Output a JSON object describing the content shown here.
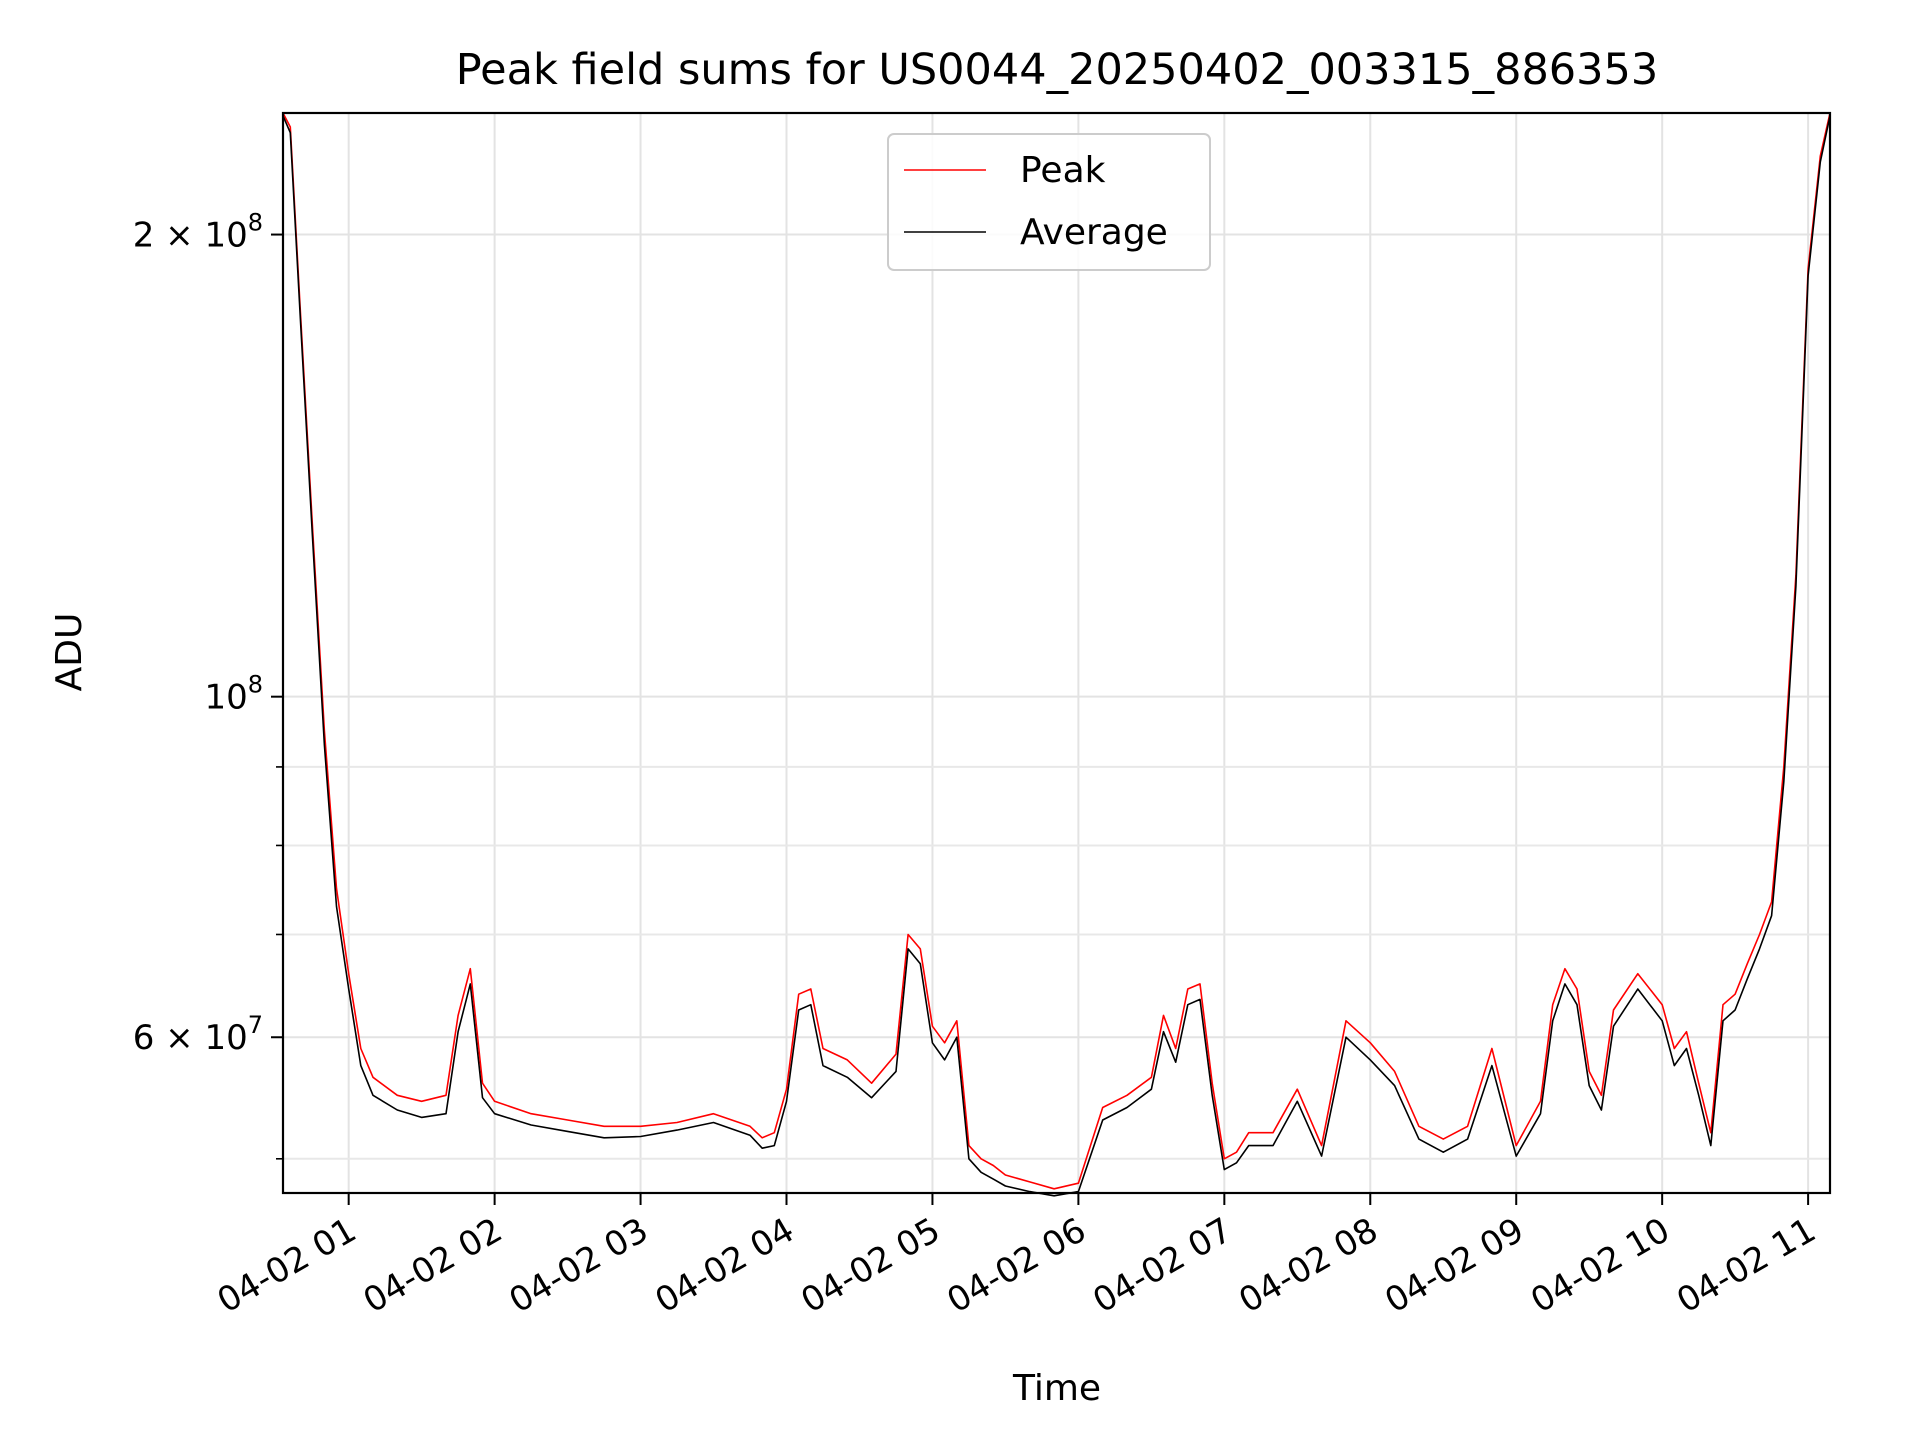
{
  "chart_data": {
    "type": "line",
    "title": "Peak field sums for US0044_20250402_003315_886353",
    "xlabel": "Time",
    "ylabel": "ADU",
    "yscale": "log",
    "xlim": [
      "2025-04-02 00:33",
      "2025-04-02 11:09"
    ],
    "ylim": [
      47500000,
      240000000
    ],
    "grid": true,
    "legend_position": "top-center",
    "x_ticks": [
      {
        "t": "2025-04-02 01:00",
        "label": "04-02 01"
      },
      {
        "t": "2025-04-02 02:00",
        "label": "04-02 02"
      },
      {
        "t": "2025-04-02 03:00",
        "label": "04-02 03"
      },
      {
        "t": "2025-04-02 04:00",
        "label": "04-02 04"
      },
      {
        "t": "2025-04-02 05:00",
        "label": "04-02 05"
      },
      {
        "t": "2025-04-02 06:00",
        "label": "04-02 06"
      },
      {
        "t": "2025-04-02 07:00",
        "label": "04-02 07"
      },
      {
        "t": "2025-04-02 08:00",
        "label": "04-02 08"
      },
      {
        "t": "2025-04-02 09:00",
        "label": "04-02 09"
      },
      {
        "t": "2025-04-02 10:00",
        "label": "04-02 10"
      },
      {
        "t": "2025-04-02 11:00",
        "label": "04-02 11"
      }
    ],
    "y_major_ticks": [
      {
        "value": 60000000,
        "mantissa": "6",
        "exponent": "7"
      },
      {
        "value": 100000000,
        "mantissa": "",
        "exponent": "8"
      },
      {
        "value": 200000000,
        "mantissa": "2",
        "exponent": "8"
      }
    ],
    "y_minor_ticks": [
      50000000,
      70000000,
      80000000,
      90000000
    ],
    "series": [
      {
        "name": "Peak",
        "color": "#ff0000",
        "x": [
          "2025-04-02 00:33",
          "2025-04-02 00:36",
          "2025-04-02 00:40",
          "2025-04-02 00:45",
          "2025-04-02 00:50",
          "2025-04-02 00:55",
          "2025-04-02 01:00",
          "2025-04-02 01:05",
          "2025-04-02 01:10",
          "2025-04-02 01:20",
          "2025-04-02 01:30",
          "2025-04-02 01:40",
          "2025-04-02 01:45",
          "2025-04-02 01:50",
          "2025-04-02 01:55",
          "2025-04-02 02:00",
          "2025-04-02 02:15",
          "2025-04-02 02:30",
          "2025-04-02 02:45",
          "2025-04-02 03:00",
          "2025-04-02 03:15",
          "2025-04-02 03:30",
          "2025-04-02 03:45",
          "2025-04-02 03:50",
          "2025-04-02 03:55",
          "2025-04-02 04:00",
          "2025-04-02 04:05",
          "2025-04-02 04:10",
          "2025-04-02 04:15",
          "2025-04-02 04:25",
          "2025-04-02 04:35",
          "2025-04-02 04:45",
          "2025-04-02 04:50",
          "2025-04-02 04:55",
          "2025-04-02 05:00",
          "2025-04-02 05:05",
          "2025-04-02 05:10",
          "2025-04-02 05:15",
          "2025-04-02 05:20",
          "2025-04-02 05:25",
          "2025-04-02 05:30",
          "2025-04-02 05:40",
          "2025-04-02 05:50",
          "2025-04-02 06:00",
          "2025-04-02 06:10",
          "2025-04-02 06:20",
          "2025-04-02 06:30",
          "2025-04-02 06:35",
          "2025-04-02 06:40",
          "2025-04-02 06:45",
          "2025-04-02 06:50",
          "2025-04-02 06:55",
          "2025-04-02 07:00",
          "2025-04-02 07:05",
          "2025-04-02 07:10",
          "2025-04-02 07:20",
          "2025-04-02 07:30",
          "2025-04-02 07:40",
          "2025-04-02 07:50",
          "2025-04-02 08:00",
          "2025-04-02 08:10",
          "2025-04-02 08:20",
          "2025-04-02 08:30",
          "2025-04-02 08:40",
          "2025-04-02 08:50",
          "2025-04-02 09:00",
          "2025-04-02 09:10",
          "2025-04-02 09:15",
          "2025-04-02 09:20",
          "2025-04-02 09:25",
          "2025-04-02 09:30",
          "2025-04-02 09:35",
          "2025-04-02 09:40",
          "2025-04-02 09:50",
          "2025-04-02 10:00",
          "2025-04-02 10:05",
          "2025-04-02 10:10",
          "2025-04-02 10:15",
          "2025-04-02 10:20",
          "2025-04-02 10:25",
          "2025-04-02 10:30",
          "2025-04-02 10:35",
          "2025-04-02 10:40",
          "2025-04-02 10:45",
          "2025-04-02 10:50",
          "2025-04-02 10:55",
          "2025-04-02 11:00",
          "2025-04-02 11:05",
          "2025-04-02 11:09"
        ],
        "y": [
          240000000,
          235000000,
          180000000,
          130000000,
          95000000,
          75000000,
          66000000,
          59000000,
          56500000,
          55000000,
          54500000,
          55000000,
          62000000,
          66500000,
          56000000,
          54500000,
          53500000,
          53000000,
          52500000,
          52500000,
          52800000,
          53500000,
          52500000,
          51600000,
          52000000,
          55500000,
          64000000,
          64500000,
          59000000,
          58000000,
          56000000,
          58500000,
          70000000,
          68500000,
          61000000,
          59500000,
          61500000,
          51000000,
          50000000,
          49500000,
          48800000,
          48300000,
          47800000,
          48200000,
          54000000,
          55000000,
          56500000,
          62000000,
          59000000,
          64500000,
          65000000,
          56000000,
          50000000,
          50500000,
          52000000,
          52000000,
          55500000,
          51000000,
          61500000,
          59500000,
          57000000,
          52500000,
          51500000,
          52500000,
          59000000,
          51000000,
          54500000,
          63000000,
          66500000,
          64500000,
          57000000,
          55000000,
          62500000,
          66000000,
          63000000,
          59000000,
          60500000,
          56000000,
          52000000,
          63000000,
          64000000,
          67000000,
          70000000,
          73500000,
          90000000,
          120000000,
          190000000,
          225000000,
          240000000
        ]
      },
      {
        "name": "Average",
        "color": "#000000",
        "x": [
          "2025-04-02 00:33",
          "2025-04-02 00:36",
          "2025-04-02 00:40",
          "2025-04-02 00:45",
          "2025-04-02 00:50",
          "2025-04-02 00:55",
          "2025-04-02 01:00",
          "2025-04-02 01:05",
          "2025-04-02 01:10",
          "2025-04-02 01:20",
          "2025-04-02 01:30",
          "2025-04-02 01:40",
          "2025-04-02 01:45",
          "2025-04-02 01:50",
          "2025-04-02 01:55",
          "2025-04-02 02:00",
          "2025-04-02 02:15",
          "2025-04-02 02:30",
          "2025-04-02 02:45",
          "2025-04-02 03:00",
          "2025-04-02 03:15",
          "2025-04-02 03:30",
          "2025-04-02 03:45",
          "2025-04-02 03:50",
          "2025-04-02 03:55",
          "2025-04-02 04:00",
          "2025-04-02 04:05",
          "2025-04-02 04:10",
          "2025-04-02 04:15",
          "2025-04-02 04:25",
          "2025-04-02 04:35",
          "2025-04-02 04:45",
          "2025-04-02 04:50",
          "2025-04-02 04:55",
          "2025-04-02 05:00",
          "2025-04-02 05:05",
          "2025-04-02 05:10",
          "2025-04-02 05:15",
          "2025-04-02 05:20",
          "2025-04-02 05:25",
          "2025-04-02 05:30",
          "2025-04-02 05:40",
          "2025-04-02 05:50",
          "2025-04-02 06:00",
          "2025-04-02 06:10",
          "2025-04-02 06:20",
          "2025-04-02 06:30",
          "2025-04-02 06:35",
          "2025-04-02 06:40",
          "2025-04-02 06:45",
          "2025-04-02 06:50",
          "2025-04-02 06:55",
          "2025-04-02 07:00",
          "2025-04-02 07:05",
          "2025-04-02 07:10",
          "2025-04-02 07:20",
          "2025-04-02 07:30",
          "2025-04-02 07:40",
          "2025-04-02 07:50",
          "2025-04-02 08:00",
          "2025-04-02 08:10",
          "2025-04-02 08:20",
          "2025-04-02 08:30",
          "2025-04-02 08:40",
          "2025-04-02 08:50",
          "2025-04-02 09:00",
          "2025-04-02 09:10",
          "2025-04-02 09:15",
          "2025-04-02 09:20",
          "2025-04-02 09:25",
          "2025-04-02 09:30",
          "2025-04-02 09:35",
          "2025-04-02 09:40",
          "2025-04-02 09:50",
          "2025-04-02 10:00",
          "2025-04-02 10:05",
          "2025-04-02 10:10",
          "2025-04-02 10:15",
          "2025-04-02 10:20",
          "2025-04-02 10:25",
          "2025-04-02 10:30",
          "2025-04-02 10:35",
          "2025-04-02 10:40",
          "2025-04-02 10:45",
          "2025-04-02 10:50",
          "2025-04-02 10:55",
          "2025-04-02 11:00",
          "2025-04-02 11:05",
          "2025-04-02 11:09"
        ],
        "y": [
          239000000,
          233000000,
          178000000,
          128000000,
          93000000,
          73000000,
          64500000,
          57500000,
          55000000,
          53800000,
          53200000,
          53500000,
          60500000,
          65000000,
          54800000,
          53500000,
          52600000,
          52100000,
          51600000,
          51700000,
          52200000,
          52800000,
          51800000,
          50800000,
          51000000,
          54500000,
          62500000,
          63000000,
          57500000,
          56500000,
          54800000,
          57000000,
          68500000,
          67000000,
          59500000,
          58000000,
          60000000,
          50000000,
          49000000,
          48500000,
          48000000,
          47600000,
          47300000,
          47600000,
          53000000,
          54000000,
          55500000,
          60500000,
          57800000,
          63000000,
          63500000,
          55000000,
          49200000,
          49700000,
          51000000,
          51000000,
          54500000,
          50200000,
          60000000,
          58000000,
          55800000,
          51500000,
          50500000,
          51500000,
          57500000,
          50200000,
          53500000,
          61500000,
          65000000,
          63000000,
          55800000,
          53800000,
          61000000,
          64500000,
          61500000,
          57500000,
          59000000,
          55000000,
          51000000,
          61500000,
          62500000,
          65500000,
          68500000,
          72000000,
          88000000,
          118000000,
          188000000,
          223000000,
          239000000
        ]
      }
    ]
  }
}
